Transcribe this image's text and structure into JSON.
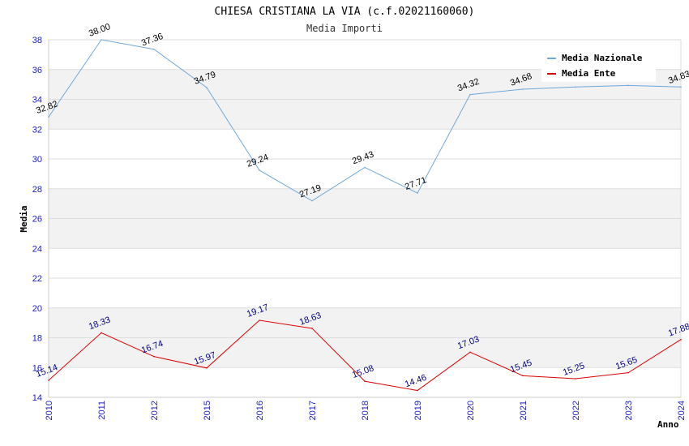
{
  "chart_data": {
    "type": "line",
    "title": "CHIESA CRISTIANA LA VIA (c.f.02021160060)",
    "subtitle": "Media Importi",
    "xlabel": "Anno",
    "ylabel": "Media",
    "x": [
      "2010",
      "2011",
      "2012",
      "2015",
      "2016",
      "2017",
      "2018",
      "2019",
      "2020",
      "2021",
      "2022",
      "2023",
      "2024"
    ],
    "yticks": [
      "14",
      "16",
      "18",
      "20",
      "22",
      "24",
      "26",
      "28",
      "30",
      "32",
      "34",
      "36",
      "38"
    ],
    "ylim": [
      14,
      38
    ],
    "grid": true,
    "legend_position": "top-right",
    "series": [
      {
        "name": "Media Nazionale",
        "color": "#6fa8dc",
        "values": [
          32.82,
          38.0,
          37.36,
          34.79,
          29.24,
          27.19,
          29.43,
          27.71,
          34.32,
          34.68,
          34.83,
          34.93,
          34.83
        ],
        "labels": [
          "32.82",
          "38.00",
          "37.36",
          "34.79",
          "29.24",
          "27.19",
          "29.43",
          "27.71",
          "34.32",
          "34.68",
          "",
          "",
          "34.83"
        ]
      },
      {
        "name": "Media Ente",
        "color": "#dd0000",
        "values": [
          15.14,
          18.33,
          16.74,
          15.97,
          19.17,
          18.63,
          15.08,
          14.46,
          17.03,
          15.45,
          15.25,
          15.65,
          17.88
        ],
        "labels": [
          "15.14",
          "18.33",
          "16.74",
          "15.97",
          "19.17",
          "18.63",
          "15.08",
          "14.46",
          "17.03",
          "15.45",
          "15.25",
          "15.65",
          "17.88"
        ]
      }
    ]
  }
}
